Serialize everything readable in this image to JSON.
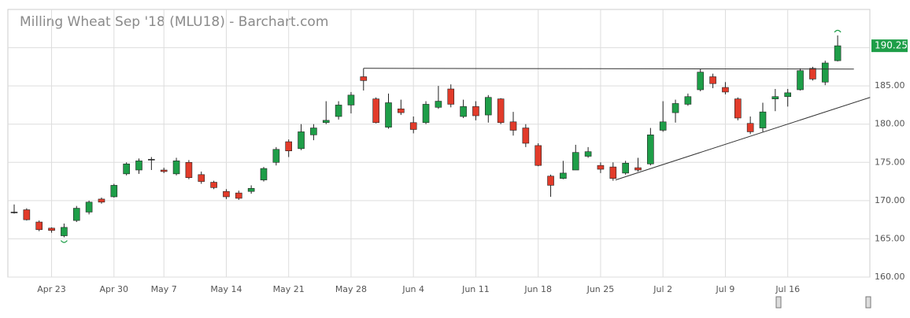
{
  "chart_data": {
    "type": "candlestick",
    "title": "Milling Wheat Sep '18 (MLU18) - Barchart.com",
    "categories": [
      null,
      null,
      null,
      "Apr 23",
      null,
      null,
      null,
      null,
      "Apr 30",
      null,
      null,
      null,
      "May 7",
      null,
      null,
      null,
      null,
      "May 14",
      null,
      null,
      null,
      null,
      "May 21",
      null,
      null,
      null,
      null,
      "May 28",
      null,
      null,
      null,
      null,
      "Jun 4",
      null,
      null,
      null,
      null,
      "Jun 11",
      null,
      null,
      null,
      null,
      "Jun 18",
      null,
      null,
      null,
      null,
      "Jun 25",
      null,
      null,
      null,
      null,
      "Jul 2",
      null,
      null,
      null,
      null,
      "Jul 9",
      null,
      null,
      null,
      null,
      "Jul 16",
      null,
      null,
      null,
      null
    ],
    "open": [
      168.5,
      168.8,
      167.2,
      166.4,
      165.4,
      167.4,
      168.5,
      170.2,
      170.5,
      173.5,
      174,
      175.4,
      174,
      173.5,
      175,
      173.4,
      172.4,
      171.2,
      171,
      171.2,
      172.7,
      175,
      177.7,
      176.8,
      178.6,
      180.2,
      181,
      182.5,
      186.2,
      183.3,
      179.6,
      182,
      180.2,
      180.2,
      182.2,
      184.6,
      181,
      182.3,
      181.2,
      183.3,
      180.3,
      179.5,
      177.2,
      173.2,
      172.9,
      174,
      175.8,
      174.6,
      174.4,
      173.6,
      174.3,
      174.8,
      179.2,
      181.5,
      182.6,
      184.5,
      186.2,
      184.8,
      183.3,
      180.1,
      179.5,
      183.3,
      183.6,
      184.5,
      187.3,
      185.5,
      188.3
    ],
    "high": [
      169.5,
      169,
      167.4,
      166.5,
      167,
      169.3,
      170,
      170.4,
      172.2,
      175,
      175.5,
      175.7,
      174.3,
      175.6,
      175.3,
      173.8,
      172.6,
      171.5,
      171.3,
      172,
      174.4,
      177,
      178,
      180,
      180,
      183,
      183,
      184.2,
      187.3,
      183.5,
      184,
      183.2,
      181,
      183,
      185,
      185.2,
      183.2,
      183,
      183.8,
      183.4,
      181.6,
      180,
      177.5,
      173.4,
      175.2,
      177.3,
      177,
      175,
      175,
      175.2,
      175.6,
      179.5,
      183,
      183.2,
      184,
      187.2,
      186.6,
      185.5,
      183.5,
      181,
      182.8,
      184.6,
      184.6,
      187.3,
      187.5,
      188.3,
      191.6
    ],
    "low": [
      168.3,
      167.4,
      166,
      165.8,
      165.2,
      167.2,
      168.2,
      169.6,
      170.4,
      173.3,
      173.5,
      174,
      173.6,
      173.3,
      172.8,
      172.2,
      171.5,
      170.2,
      170.1,
      170.9,
      172.5,
      174.6,
      175.7,
      176.6,
      177.9,
      180,
      180.6,
      181.4,
      184.4,
      180.1,
      179.4,
      181.2,
      178.8,
      180,
      182,
      182.2,
      180.8,
      180.5,
      180.2,
      180,
      178.5,
      177,
      174.5,
      170.5,
      172.8,
      174,
      175.6,
      173.6,
      172.6,
      173.4,
      173.8,
      174.6,
      179,
      180.2,
      182.4,
      184.3,
      184.7,
      183.9,
      180.5,
      178.7,
      179,
      181.7,
      182.3,
      184.4,
      185.7,
      185.1,
      188.2
    ],
    "close": [
      168.5,
      167.5,
      166.2,
      166.1,
      166.5,
      169,
      169.8,
      169.8,
      172,
      174.8,
      175.2,
      175.4,
      173.8,
      175.2,
      173,
      172.5,
      171.7,
      170.5,
      170.3,
      171.6,
      174.2,
      176.7,
      176.5,
      179,
      179.5,
      180.5,
      182.5,
      183.8,
      185.7,
      180.2,
      182.8,
      181.5,
      179.3,
      182.6,
      183,
      182.6,
      182.3,
      181.1,
      183.5,
      180.2,
      179.2,
      177.5,
      174.6,
      172,
      173.6,
      176.3,
      176.4,
      174.1,
      172.9,
      174.9,
      174,
      178.6,
      180.3,
      182.7,
      183.6,
      186.8,
      185.3,
      184.2,
      180.8,
      179,
      181.6,
      183.6,
      184.1,
      187,
      185.9,
      188,
      190.25
    ],
    "last_label": "190.25",
    "up_color": "#1e9e48",
    "down_color": "#e23b2a",
    "trendlines": [
      {
        "x": [
          28,
          67.3
        ],
        "y": [
          187.3,
          187.2
        ]
      },
      {
        "x": [
          48.2,
          68.6
        ],
        "y": [
          172.7,
          183.5
        ]
      }
    ],
    "ylim": [
      160,
      195
    ],
    "yticks": [
      {
        "value": 160,
        "label": "160.00"
      },
      {
        "value": 165,
        "label": "165.00"
      },
      {
        "value": 170,
        "label": "170.00"
      },
      {
        "value": 175,
        "label": "175.00"
      },
      {
        "value": 180,
        "label": "180.00"
      },
      {
        "value": 185,
        "label": "185.00"
      },
      {
        "value": 190,
        "label": "190.00"
      }
    ],
    "grid": true
  }
}
